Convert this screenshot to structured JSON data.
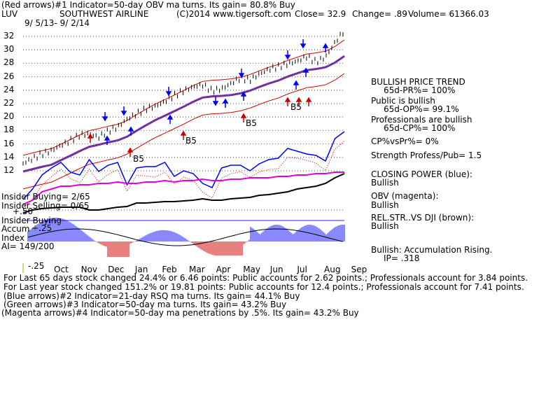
{
  "header": {
    "line1": "(Red arrows)#1 Indicator=50-day OBV ma turns. Its gain= 80.8% Buy",
    "ticker": "LUV",
    "company": "SOUTHWEST AIRLINE",
    "copyright": "(C)2014 www.tigersoft.com",
    "close": "Close= 32.9",
    "change": "Change= .89",
    "volume": "Volume= 61366.03",
    "date_range": "9/ 5/13- 9/ 2/14"
  },
  "chart_data": {
    "type": "line",
    "title": "SOUTHWEST AIRLINE",
    "price_ticks": [
      12,
      14,
      16,
      18,
      20,
      22,
      24,
      26,
      28,
      30,
      32
    ],
    "ylim": [
      11,
      33
    ],
    "months": [
      "Oct",
      "Nov",
      "Dec",
      "Jan",
      "Feb",
      "Mar",
      "Apr",
      "May",
      "Jun",
      "Jul",
      "Aug",
      "Sep"
    ],
    "series": [
      {
        "name": "Price",
        "values": [
          13.1,
          13.8,
          14.5,
          15.0,
          15.8,
          16.5,
          17.3,
          17.5,
          17.0,
          17.9,
          18.5,
          19.7,
          20.5,
          21.2,
          21.6,
          22.3,
          23.2,
          23.9,
          24.5,
          24.8,
          23.9,
          24.2,
          25.0,
          25.8,
          25.5,
          26.4,
          27.1,
          27.5,
          27.9,
          28.3,
          29.0,
          28.2,
          28.9,
          31.1,
          32.9
        ]
      },
      {
        "name": "Closing Power",
        "values": []
      },
      {
        "name": "OBV",
        "values": []
      }
    ],
    "accum_ticks": [
      "+.50",
      "+.25",
      "-.25"
    ],
    "annotations": [
      "B5",
      "B5",
      "B5",
      "B5",
      "B5"
    ]
  },
  "right_panel": {
    "trend_title": "BULLISH PRICE TREND",
    "pr": "65d-PR%= 100%",
    "public": "Public is bullish",
    "op": "65d-OP%= 99.1%",
    "prof": "Professionals are bullish",
    "cp": "65d-CP%= 100%",
    "cpvspr": "CP%vsPr%= 0%",
    "strength": "Strength Profess/Pub= 1.5",
    "closing_power": "CLOSING POWER (blue):",
    "cp_state": "Bullish",
    "obv": "OBV (magenta):",
    "obv_state": "Bullish",
    "relstr": "REL.STR..VS DJI (brown):",
    "relstr_state": "Bullish",
    "accum": "Bullish: Accumulation Rising.",
    "ip": "IP= .318"
  },
  "left_panel": {
    "insider_buying": "Insider Buying= 2/65",
    "insider_selling": "Insider Selling= 0/65",
    "insider_buying2": "Insider Buying",
    "accum": "Accum",
    "index": "Index",
    "ai": "AI= 149/200"
  },
  "footer": {
    "l1": "For Last 65 days stock changed  24.4% or  6.46 points:  Public accounts for  2.62 points.;  Professionals account for  3.84 points.",
    "l2": "For Last year stock changed  151.2% or  19.81 points:  Public accounts for  12.4 points.;  Professionals account for  7.41 points.",
    "l3": "(Blue arrows)#2 Indicator=21-day RSQ ma turns. Its gain= 44.1% Buy",
    "l4": "(Green arrows)#3 Indicator=50-day ma turns. Its gain= 43.2% Buy",
    "l5": "(Magenta arrows)#4 Indicator=50-day ma penetrations by .5%. Its gain= 43.2% Buy"
  }
}
